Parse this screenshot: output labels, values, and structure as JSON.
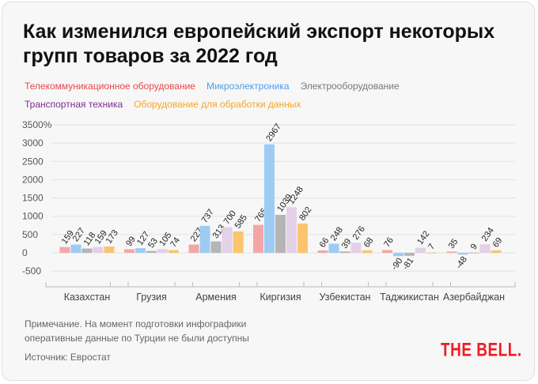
{
  "title_line1": "Как изменился европейский экспорт некоторых",
  "title_line2": "групп товаров за 2022 год",
  "note_line1": "Примечание. На момент подготовки инфографики",
  "note_line2": "оперативные данные по Турции не были доступны",
  "source": "Источник: Евростат",
  "logo": "THE BELL.",
  "chart_data": {
    "type": "bar",
    "title": "",
    "ylim": [
      -500,
      3500
    ],
    "yticks": [
      "3500%",
      "3000",
      "2500",
      "2000",
      "1500",
      "1000",
      "500",
      "0",
      "-500"
    ],
    "ytick_values": [
      3500,
      3000,
      2500,
      2000,
      1500,
      1000,
      500,
      0,
      -500
    ],
    "grid": true,
    "legend_placement": "top",
    "categories": [
      "Казахстан",
      "Грузия",
      "Армения",
      "Киргизия",
      "Узбекистан",
      "Таджикистан",
      "Азербайджан"
    ],
    "series": [
      {
        "name": "Телекоммуникационное оборудование",
        "color": "#f4a6a6",
        "label_color": "#e8474b",
        "values": [
          159,
          99,
          227,
          765,
          66,
          76,
          35
        ]
      },
      {
        "name": "Микроэлектроника",
        "color": "#9ecbf4",
        "label_color": "#4a9fe8",
        "values": [
          227,
          127,
          737,
          2967,
          248,
          -90,
          -48
        ]
      },
      {
        "name": "Электрооборудование",
        "color": "#b5b5b5",
        "label_color": "#777777",
        "values": [
          118,
          53,
          313,
          1039,
          39,
          -81,
          9
        ]
      },
      {
        "name": "Транспортная техника",
        "color": "#e3d1e8",
        "label_color": "#7b2d8e",
        "values": [
          159,
          105,
          700,
          1248,
          276,
          142,
          234
        ]
      },
      {
        "name": "Оборудование для обработки данных",
        "color": "#fcc46e",
        "label_color": "#f5a623",
        "values": [
          173,
          74,
          585,
          802,
          68,
          7,
          69
        ]
      }
    ]
  }
}
